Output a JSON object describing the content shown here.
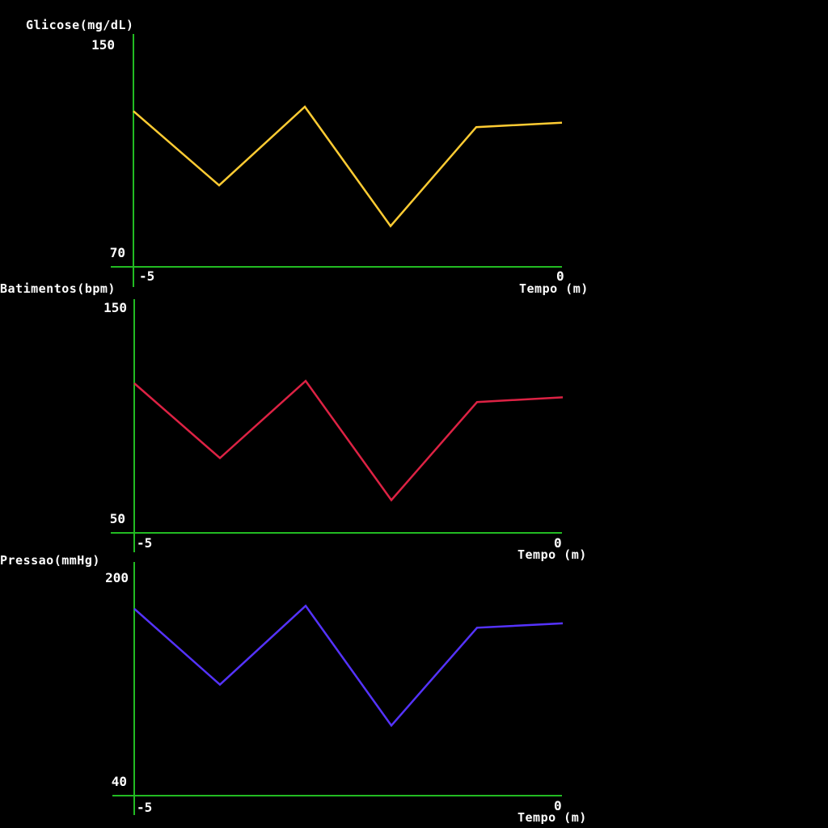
{
  "theme": {
    "background": "#000000",
    "axis_color": "#22bb22",
    "text_color": "#ffffff"
  },
  "chart_data": [
    {
      "type": "line",
      "ylabel": "Glicose(mg/dL)",
      "xlabel": "Tempo (m)",
      "ylim": [
        70,
        150
      ],
      "xlim": [
        -5,
        0
      ],
      "y_tick_labels": [
        "150",
        "70"
      ],
      "x_tick_labels": [
        "-5",
        "0"
      ],
      "x": [
        -5,
        -4,
        -3,
        -2,
        -1,
        0
      ],
      "series": [
        {
          "color": "#ffcc33",
          "values": [
            123.5,
            98,
            125,
            84,
            118,
            119.5
          ]
        }
      ]
    },
    {
      "type": "line",
      "ylabel": "Batimentos(bpm)",
      "xlabel": "Tempo (m)",
      "ylim": [
        50,
        150
      ],
      "xlim": [
        -5,
        0
      ],
      "y_tick_labels": [
        "150",
        "50"
      ],
      "x_tick_labels": [
        "-5",
        "0"
      ],
      "x": [
        -5,
        -4,
        -3,
        -2,
        -1,
        0
      ],
      "series": [
        {
          "color": "#dd2244",
          "values": [
            114,
            82,
            115,
            64,
            106,
            108
          ]
        }
      ]
    },
    {
      "type": "line",
      "ylabel": "Pressao(mmHg)",
      "xlabel": "Tempo (m)",
      "ylim": [
        40,
        200
      ],
      "xlim": [
        -5,
        0
      ],
      "y_tick_labels": [
        "200",
        "40"
      ],
      "x_tick_labels": [
        "-5",
        "0"
      ],
      "x": [
        -5,
        -4,
        -3,
        -2,
        -1,
        0
      ],
      "series": [
        {
          "color": "#5533ff",
          "values": [
            168,
            116,
            170,
            88,
            155,
            158
          ]
        }
      ]
    }
  ]
}
